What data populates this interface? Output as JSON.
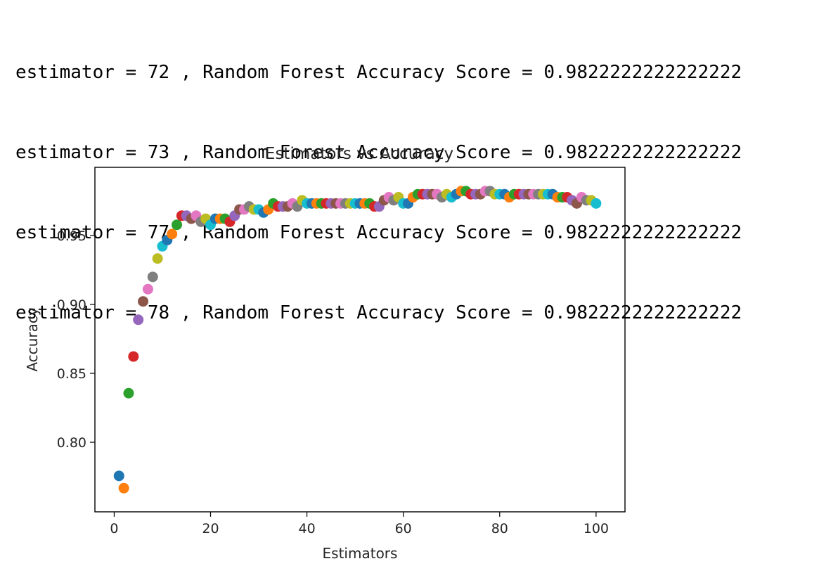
{
  "output": {
    "lines": [
      "estimator = 72 , Random Forest Accuracy Score = 0.9822222222222222",
      "estimator = 73 , Random Forest Accuracy Score = 0.9822222222222222",
      "estimator = 77 , Random Forest Accuracy Score = 0.9822222222222222",
      "estimator = 78 , Random Forest Accuracy Score = 0.9822222222222222"
    ]
  },
  "chart_data": {
    "type": "scatter",
    "title": "Estimators vs Accuracy",
    "xlabel": "Estimators",
    "ylabel": "Accuracy",
    "xlim": [
      -4,
      106
    ],
    "ylim": [
      0.7495,
      0.9995
    ],
    "xticks": [
      0,
      20,
      40,
      60,
      80,
      100
    ],
    "xtick_labels": [
      "0",
      "20",
      "40",
      "60",
      "80",
      "100"
    ],
    "yticks": [
      0.8,
      0.85,
      0.9,
      0.95
    ],
    "ytick_labels": [
      "0.80",
      "0.85",
      "0.90",
      "0.95"
    ],
    "grid": false,
    "legend": "none",
    "color_cycle": [
      "#1f77b4",
      "#ff7f0e",
      "#2ca02c",
      "#d62728",
      "#9467bd",
      "#8c564b",
      "#e377c2",
      "#7f7f7f",
      "#bcbd22",
      "#17becf"
    ],
    "x": [
      1,
      2,
      3,
      4,
      5,
      6,
      7,
      8,
      9,
      10,
      11,
      12,
      13,
      14,
      15,
      16,
      17,
      18,
      19,
      20,
      21,
      22,
      23,
      24,
      25,
      26,
      27,
      28,
      29,
      30,
      31,
      32,
      33,
      34,
      35,
      36,
      37,
      38,
      39,
      40,
      41,
      42,
      43,
      44,
      45,
      46,
      47,
      48,
      49,
      50,
      51,
      52,
      53,
      54,
      55,
      56,
      57,
      58,
      59,
      60,
      61,
      62,
      63,
      64,
      65,
      66,
      67,
      68,
      69,
      70,
      71,
      72,
      73,
      74,
      75,
      76,
      77,
      78,
      79,
      80,
      81,
      82,
      83,
      84,
      85,
      86,
      87,
      88,
      89,
      90,
      91,
      92,
      93,
      94,
      95,
      96,
      97,
      98,
      99,
      100
    ],
    "y": [
      0.7756,
      0.7667,
      0.8356,
      0.8622,
      0.8889,
      0.9022,
      0.9111,
      0.92,
      0.9333,
      0.9422,
      0.9467,
      0.9511,
      0.9578,
      0.9644,
      0.9644,
      0.9622,
      0.9644,
      0.96,
      0.9622,
      0.9578,
      0.9622,
      0.9622,
      0.9622,
      0.96,
      0.9644,
      0.9689,
      0.9689,
      0.9711,
      0.9689,
      0.9689,
      0.9667,
      0.9689,
      0.9733,
      0.9711,
      0.9711,
      0.9711,
      0.9733,
      0.9711,
      0.9756,
      0.9733,
      0.9733,
      0.9733,
      0.9733,
      0.9733,
      0.9733,
      0.9733,
      0.9733,
      0.9733,
      0.9733,
      0.9733,
      0.9733,
      0.9733,
      0.9733,
      0.9711,
      0.9711,
      0.9756,
      0.9778,
      0.9756,
      0.9778,
      0.9733,
      0.9733,
      0.9778,
      0.98,
      0.98,
      0.98,
      0.98,
      0.98,
      0.9778,
      0.98,
      0.9778,
      0.98,
      0.9822,
      0.9822,
      0.98,
      0.98,
      0.98,
      0.9822,
      0.9822,
      0.98,
      0.98,
      0.98,
      0.9778,
      0.98,
      0.98,
      0.98,
      0.98,
      0.98,
      0.98,
      0.98,
      0.98,
      0.98,
      0.9778,
      0.9778,
      0.9778,
      0.9756,
      0.9733,
      0.9778,
      0.9756,
      0.9756,
      0.9733
    ]
  }
}
